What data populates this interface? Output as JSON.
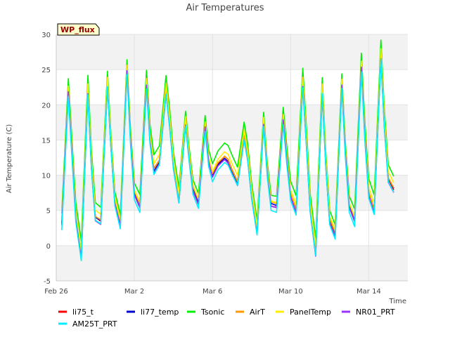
{
  "chart_data": {
    "type": "line",
    "title": "Air Temperatures",
    "xlabel": "Time",
    "ylabel": "Air Temperature (C)",
    "site_label": "WP_flux",
    "ylim": [
      -5,
      30
    ],
    "yticks": [
      -5,
      0,
      5,
      10,
      15,
      20,
      25,
      30
    ],
    "xlim": [
      "2025-02-26",
      "2025-03-16"
    ],
    "xticks": [
      {
        "date": "2025-02-26",
        "label": "Feb 26"
      },
      {
        "date": "2025-03-02",
        "label": "Mar 2"
      },
      {
        "date": "2025-03-06",
        "label": "Mar 6"
      },
      {
        "date": "2025-03-10",
        "label": "Mar 10"
      },
      {
        "date": "2025-03-14",
        "label": "Mar 14"
      }
    ],
    "grid": true,
    "legend_position": "bottom",
    "daily_extremes_base": [
      {
        "date": "2025-02-26",
        "min": 3.0,
        "max": 22.0
      },
      {
        "date": "2025-02-27",
        "min": -1.5,
        "max": 22.0
      },
      {
        "date": "2025-02-28",
        "min": 3.5,
        "max": 23.0
      },
      {
        "date": "2025-03-01",
        "min": 3.0,
        "max": 25.0
      },
      {
        "date": "2025-03-02",
        "min": 5.5,
        "max": 23.0
      },
      {
        "date": "2025-03-03",
        "min": 12.0,
        "max": 22.0
      },
      {
        "date": "2025-03-04",
        "min": 6.5,
        "max": 17.5
      },
      {
        "date": "2025-03-05",
        "min": 6.0,
        "max": 17.0
      },
      {
        "date": "2025-03-06",
        "min": 11.5,
        "max": 12.5
      },
      {
        "date": "2025-03-07",
        "min": 9.0,
        "max": 15.5
      },
      {
        "date": "2025-03-08",
        "min": 2.0,
        "max": 17.5
      },
      {
        "date": "2025-03-09",
        "min": 5.5,
        "max": 18.0
      },
      {
        "date": "2025-03-10",
        "min": 5.0,
        "max": 23.0
      },
      {
        "date": "2025-03-11",
        "min": -1.0,
        "max": 22.0
      },
      {
        "date": "2025-03-12",
        "min": 1.5,
        "max": 23.0
      },
      {
        "date": "2025-03-13",
        "min": 3.5,
        "max": 25.5
      },
      {
        "date": "2025-03-14",
        "min": 5.0,
        "max": 27.0
      },
      {
        "date": "2025-03-15",
        "min": 8.0,
        "max": 25.5
      },
      {
        "date": "2025-03-16",
        "min": 11.5,
        "max": 11.5
      }
    ],
    "series": [
      {
        "name": "li75_t",
        "color": "#ff0000",
        "offset": 0.0
      },
      {
        "name": "li77_temp",
        "color": "#0000cc",
        "offset": 0.1
      },
      {
        "name": "Tsonic",
        "color": "#00ee00",
        "offset": 1.8
      },
      {
        "name": "AirT",
        "color": "#ff9900",
        "offset": 0.3
      },
      {
        "name": "PanelTemp",
        "color": "#ffee00",
        "offset": 0.8
      },
      {
        "name": "NR01_PRT",
        "color": "#9933ff",
        "offset": -0.3
      },
      {
        "name": "AM25T_PRT",
        "color": "#00eeff",
        "offset": -0.6
      }
    ]
  }
}
